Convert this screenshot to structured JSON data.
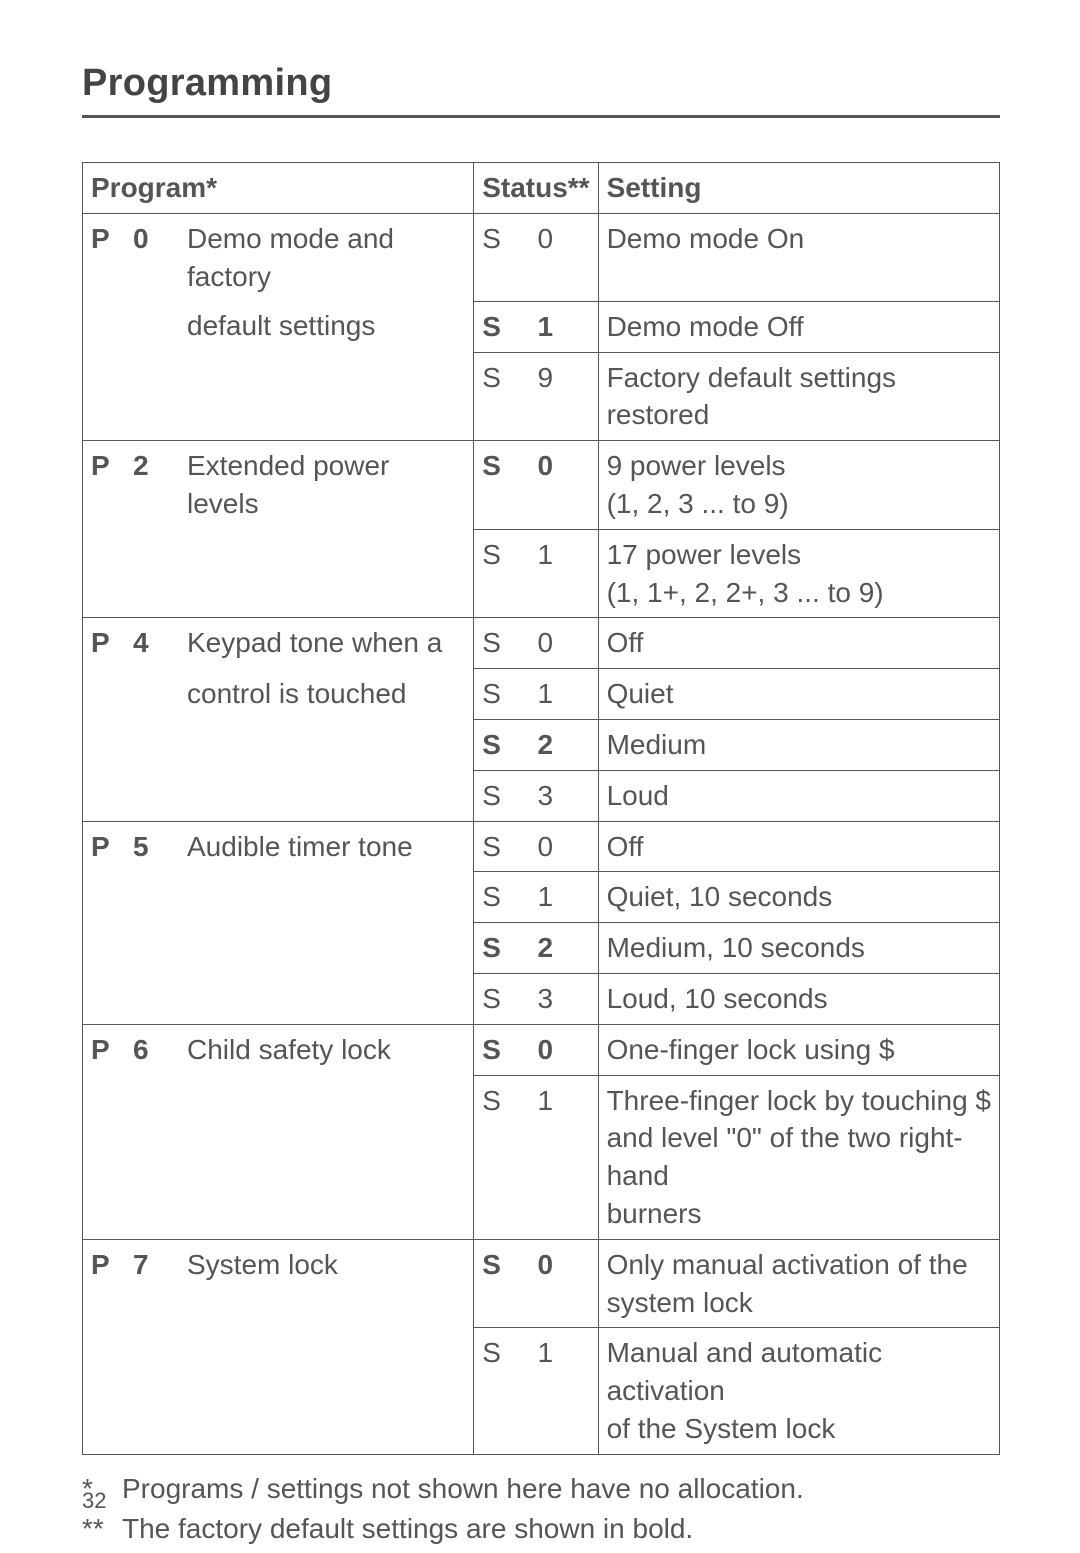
{
  "page": {
    "title": "Programming",
    "page_number": "32"
  },
  "table": {
    "headers": {
      "program": "Program*",
      "status": "Status**",
      "setting": "Setting"
    },
    "programs": [
      {
        "p_letter": "P",
        "p_num": "0",
        "desc_l1": "Demo mode and factory",
        "desc_l2": "default settings",
        "rows": [
          {
            "s": "S",
            "n": "0",
            "bold": false,
            "setting": "Demo mode On"
          },
          {
            "s": "S",
            "n": "1",
            "bold": true,
            "setting": "Demo mode Off"
          },
          {
            "s": "S",
            "n": "9",
            "bold": false,
            "setting": "Factory default settings restored"
          }
        ]
      },
      {
        "p_letter": "P",
        "p_num": "2",
        "desc_l1": "Extended power levels",
        "desc_l2": "",
        "rows": [
          {
            "s": "S",
            "n": "0",
            "bold": true,
            "setting_l1": "9 power levels",
            "setting_l2": "(1, 2, 3 ... to 9)"
          },
          {
            "s": "S",
            "n": "1",
            "bold": false,
            "setting_l1": "17 power levels",
            "setting_l2": "(1, 1+, 2, 2+, 3 ... to 9)"
          }
        ]
      },
      {
        "p_letter": "P",
        "p_num": "4",
        "desc_l1": "Keypad tone when a",
        "desc_l2": "control is touched",
        "rows": [
          {
            "s": "S",
            "n": "0",
            "bold": false,
            "setting": "Off"
          },
          {
            "s": "S",
            "n": "1",
            "bold": false,
            "setting": "Quiet"
          },
          {
            "s": "S",
            "n": "2",
            "bold": true,
            "setting": "Medium"
          },
          {
            "s": "S",
            "n": "3",
            "bold": false,
            "setting": "Loud"
          }
        ]
      },
      {
        "p_letter": "P",
        "p_num": "5",
        "desc_l1": "Audible timer tone",
        "desc_l2": "",
        "rows": [
          {
            "s": "S",
            "n": "0",
            "bold": false,
            "setting": "Off"
          },
          {
            "s": "S",
            "n": "1",
            "bold": false,
            "setting": "Quiet, 10 seconds"
          },
          {
            "s": "S",
            "n": "2",
            "bold": true,
            "setting": "Medium, 10 seconds"
          },
          {
            "s": "S",
            "n": "3",
            "bold": false,
            "setting": "Loud, 10 seconds"
          }
        ]
      },
      {
        "p_letter": "P",
        "p_num": "6",
        "desc_l1": "Child safety lock",
        "desc_l2": "",
        "rows": [
          {
            "s": "S",
            "n": "0",
            "bold": true,
            "setting": "One-finger lock using $"
          },
          {
            "s": "S",
            "n": "1",
            "bold": false,
            "setting_l1": "Three-finger lock by touching $",
            "setting_l2": "and level \"0\" of the two right-hand",
            "setting_l3": "burners"
          }
        ]
      },
      {
        "p_letter": "P",
        "p_num": "7",
        "desc_l1": "System lock",
        "desc_l2": "",
        "rows": [
          {
            "s": "S",
            "n": "0",
            "bold": true,
            "setting_l1": "Only manual activation of the",
            "setting_l2": "system lock"
          },
          {
            "s": "S",
            "n": "1",
            "bold": false,
            "setting_l1": "Manual and automatic activation",
            "setting_l2": "of the System lock"
          }
        ]
      }
    ]
  },
  "footnotes": {
    "f1_mark": "*",
    "f1_text": "Programs / settings not shown here have no allocation.",
    "f2_mark": "**",
    "f2_text": "The factory default settings are shown in bold."
  }
}
